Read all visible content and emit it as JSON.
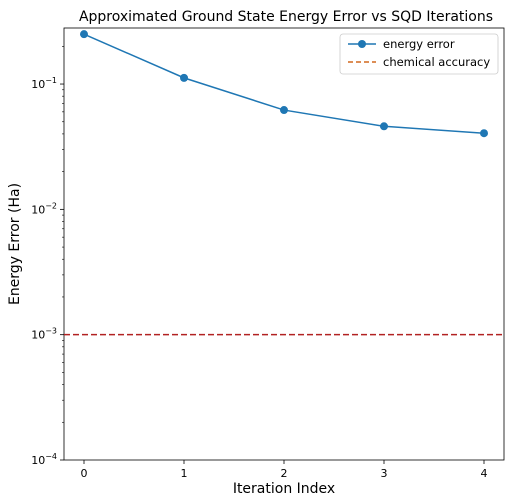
{
  "chart_data": {
    "type": "line",
    "title": "Approximated Ground State Energy Error vs SQD Iterations",
    "xlabel": "Iteration Index",
    "ylabel": "Energy Error (Ha)",
    "x": [
      0,
      1,
      2,
      3,
      4
    ],
    "xlim": [
      -0.2,
      4.2
    ],
    "ylim": [
      0.0001,
      0.28
    ],
    "yscale": "log",
    "xticks": [
      "0",
      "1",
      "2",
      "3",
      "4"
    ],
    "yticks": [
      {
        "value": 0.0001,
        "base": "10",
        "exp": "−4"
      },
      {
        "value": 0.001,
        "base": "10",
        "exp": "−3"
      },
      {
        "value": 0.01,
        "base": "10",
        "exp": "−2"
      },
      {
        "value": 0.1,
        "base": "10",
        "exp": "−1"
      }
    ],
    "grid": false,
    "legend_position": "top-right",
    "series": [
      {
        "name": "energy error",
        "values": [
          0.25,
          0.112,
          0.062,
          0.046,
          0.0405
        ],
        "color": "#1f77b4",
        "marker": "circle",
        "style": "solid"
      }
    ],
    "reference_lines": [
      {
        "name": "chemical accuracy",
        "y": 0.001,
        "color": "#b22222",
        "style": "dashed",
        "legend_color": "#d2691e"
      }
    ]
  }
}
